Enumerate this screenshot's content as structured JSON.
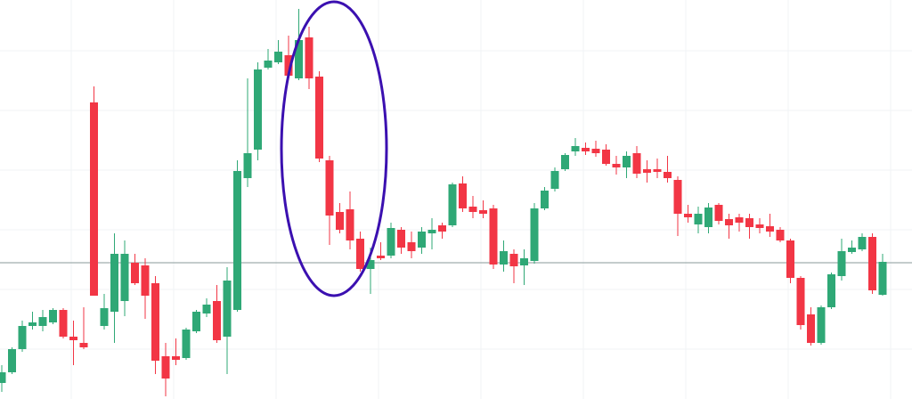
{
  "chart_data": {
    "type": "candlestick",
    "up_color": "#2fa876",
    "down_color": "#f23645",
    "price_line_color": "#8a9a9a",
    "ylim": [
      0,
      448
    ],
    "price_line": 153,
    "open": [
      18,
      30,
      56,
      82,
      82,
      86,
      100,
      70,
      63,
      333,
      82,
      98,
      110,
      153,
      150,
      130,
      48,
      48,
      46,
      76,
      96,
      110,
      70,
      100,
      248,
      280,
      372,
      378,
      386,
      360,
      406,
      362,
      268,
      210,
      213,
      180,
      146,
      161,
      161,
      190,
      176,
      170,
      186,
      195,
      195,
      242,
      216,
      212,
      214,
      151,
      163,
      150,
      155,
      214,
      236,
      258,
      278,
      282,
      281,
      280,
      264,
      260,
      276,
      258,
      258,
      255,
      246,
      208,
      196,
      193,
      218,
      202,
      204,
      203,
      196,
      194,
      190,
      178,
      136,
      95,
      63,
      103,
      138,
      165,
      168,
      182,
      117
    ],
    "high": [
      38,
      58,
      88,
      98,
      100,
      102,
      102,
      88,
      103,
      351,
      118,
      186,
      178,
      163,
      158,
      138,
      63,
      68,
      80,
      100,
      113,
      128,
      148,
      268,
      360,
      378,
      393,
      403,
      408,
      438,
      418,
      368,
      273,
      220,
      233,
      188,
      170,
      176,
      198,
      193,
      188,
      193,
      203,
      198,
      243,
      250,
      228,
      223,
      218,
      178,
      168,
      168,
      220,
      238,
      260,
      276,
      293,
      288,
      290,
      286,
      273,
      278,
      284,
      268,
      270,
      273,
      250,
      218,
      216,
      220,
      220,
      208,
      208,
      208,
      203,
      208,
      193,
      180,
      138,
      103,
      105,
      142,
      180,
      178,
      186,
      186,
      163
    ],
    "low": [
      8,
      28,
      53,
      78,
      76,
      84,
      68,
      38,
      56,
      116,
      78,
      63,
      93,
      128,
      90,
      28,
      3,
      38,
      44,
      74,
      92,
      63,
      28,
      98,
      238,
      268,
      370,
      376,
      358,
      358,
      348,
      266,
      173,
      186,
      168,
      143,
      118,
      156,
      158,
      163,
      158,
      163,
      168,
      180,
      193,
      210,
      203,
      203,
      146,
      143,
      130,
      128,
      152,
      212,
      233,
      256,
      273,
      274,
      272,
      262,
      252,
      248,
      248,
      243,
      248,
      243,
      183,
      198,
      186,
      186,
      196,
      180,
      188,
      180,
      186,
      182,
      176,
      130,
      78,
      60,
      61,
      101,
      133,
      163,
      166,
      118,
      116
    ],
    "close": [
      30,
      56,
      82,
      86,
      92,
      100,
      70,
      66,
      58,
      116,
      102,
      163,
      163,
      130,
      116,
      43,
      23,
      44,
      78,
      98,
      106,
      66,
      133,
      256,
      276,
      370,
      380,
      390,
      363,
      403,
      360,
      270,
      206,
      190,
      178,
      146,
      156,
      158,
      192,
      170,
      166,
      188,
      190,
      188,
      241,
      214,
      210,
      208,
      151,
      166,
      149,
      158,
      214,
      234,
      256,
      274,
      284,
      278,
      276,
      264,
      260,
      273,
      253,
      254,
      255,
      248,
      208,
      204,
      208,
      215,
      200,
      195,
      198,
      193,
      192,
      188,
      178,
      136,
      83,
      63,
      103,
      140,
      166,
      170,
      182,
      122,
      154
    ]
  }
}
